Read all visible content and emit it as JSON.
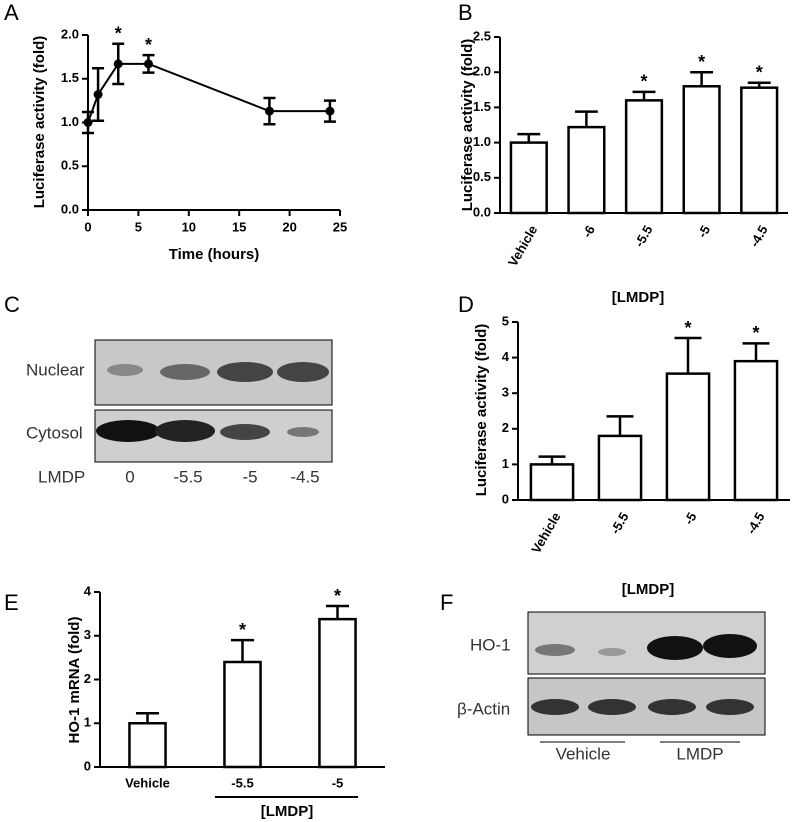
{
  "panels": [
    "A",
    "B",
    "C",
    "D",
    "E",
    "F"
  ],
  "chart_data": [
    {
      "type": "line",
      "ylabel": "Luciferase activity (fold)",
      "xlabel": "Time (hours)",
      "x": [
        0,
        1,
        3,
        6,
        18,
        24
      ],
      "values": [
        1.0,
        1.32,
        1.67,
        1.67,
        1.13,
        1.13
      ],
      "errors": [
        0.12,
        0.3,
        0.23,
        0.1,
        0.15,
        0.12
      ],
      "significance": [
        null,
        null,
        "*",
        "*",
        null,
        null
      ],
      "xlim": [
        0,
        25
      ],
      "xticks": [
        0,
        5,
        10,
        15,
        20,
        25
      ],
      "ylim": [
        0,
        2.0
      ],
      "yticks": [
        {
          "value": 0,
          "label": "0.0"
        },
        {
          "value": 0.5,
          "label": "0.5"
        },
        {
          "value": 1,
          "label": "1.0"
        },
        {
          "value": 1.5,
          "label": "1.5"
        },
        {
          "value": 2,
          "label": "2.0"
        }
      ],
      "color": "#000000"
    },
    {
      "type": "bar",
      "ylabel": "Luciferase activity (fold)",
      "xlabel": "[LMDP]",
      "categories": [
        "Vehicle",
        "-6",
        "-5.5",
        "-5",
        "-4.5"
      ],
      "values": [
        1.0,
        1.22,
        1.6,
        1.8,
        1.78
      ],
      "errors": [
        0.12,
        0.22,
        0.12,
        0.2,
        0.07
      ],
      "significance": [
        null,
        null,
        "*",
        "*",
        "*"
      ],
      "ylim": [
        0,
        2.5
      ],
      "yticks": [
        {
          "value": 0,
          "label": "0.0"
        },
        {
          "value": 0.5,
          "label": "0.5"
        },
        {
          "value": 1,
          "label": "1.0"
        },
        {
          "value": 1.5,
          "label": "1.5"
        },
        {
          "value": 2,
          "label": "2.0"
        },
        {
          "value": 2.5,
          "label": "2.5"
        }
      ],
      "color": "#ffffff"
    },
    {
      "type": "bar",
      "ylabel": "Luciferase activity (fold)",
      "xlabel": "[LMDP]",
      "categories": [
        "Vehicle",
        "-5.5",
        "-5",
        "-4.5"
      ],
      "values": [
        1.0,
        1.8,
        3.55,
        3.9
      ],
      "errors": [
        0.22,
        0.55,
        1.0,
        0.5
      ],
      "significance": [
        null,
        null,
        "*",
        "*"
      ],
      "ylim": [
        0,
        5
      ],
      "yticks": [
        0,
        1,
        2,
        3,
        4,
        5
      ],
      "color": "#ffffff"
    },
    {
      "type": "bar",
      "ylabel": "HO-1 mRNA (fold)",
      "xlabel": "[LMDP]",
      "categories": [
        "Vehicle",
        "-5.5",
        "-5"
      ],
      "values": [
        1.0,
        2.4,
        3.38
      ],
      "errors": [
        0.23,
        0.5,
        0.3
      ],
      "significance": [
        null,
        "*",
        "*"
      ],
      "ylim": [
        0,
        4
      ],
      "yticks": [
        0,
        1,
        2,
        3,
        4
      ],
      "color": "#ffffff"
    }
  ],
  "blot_c": {
    "rows": [
      "Nuclear",
      "Cytosol"
    ],
    "lane_header": "LMDP",
    "lanes": [
      "0",
      "-5.5",
      "-5",
      "-4.5"
    ]
  },
  "blot_f": {
    "rows": [
      "HO-1",
      "β-Actin"
    ],
    "groups": [
      "Vehicle",
      "LMDP"
    ]
  }
}
